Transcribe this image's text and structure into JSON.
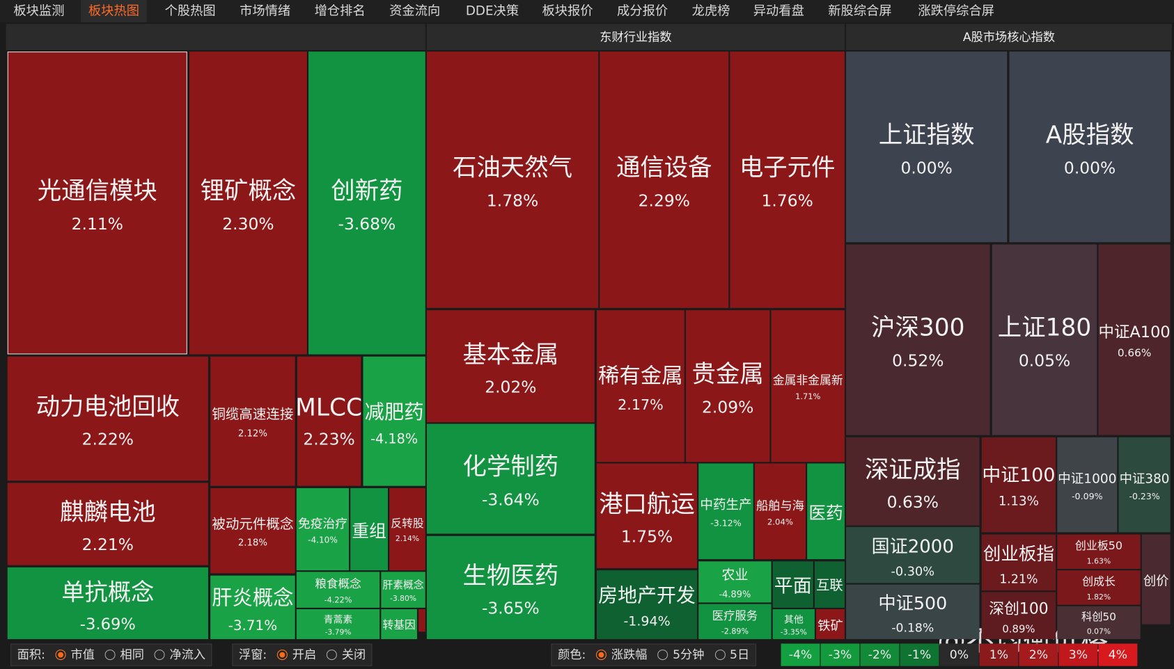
{
  "tabs": [
    "板块监测",
    "板块热图",
    "个股热图",
    "市场情绪",
    "增仓排名",
    "资金流向",
    "DDE决策",
    "板块报价",
    "成分报价",
    "龙虎榜",
    "异动看盘",
    "新股综合屏",
    "涨跌停综合屏"
  ],
  "active_tab": 1,
  "panels": [
    {
      "title": null,
      "tiles": [
        {
          "name": "光通信模块",
          "change": "2.11%"
        },
        {
          "name": "锂矿概念",
          "change": "2.30%"
        },
        {
          "name": "创新药",
          "change": "-3.68%"
        },
        {
          "name": "动力电池回收",
          "change": "2.22%"
        },
        {
          "name": "铜缆高速连接",
          "change": "2.12%"
        },
        {
          "name": "MLCC",
          "change": "2.23%"
        },
        {
          "name": "减肥药",
          "change": "-4.18%"
        },
        {
          "name": "麒麟电池",
          "change": "2.21%"
        },
        {
          "name": "被动元件概念",
          "change": "2.18%"
        },
        {
          "name": "免疫治疗",
          "change": "-4.10%"
        },
        {
          "name": "重组",
          "change": null
        },
        {
          "name": "反转股",
          "change": "2.14%"
        },
        {
          "name": "单抗概念",
          "change": "-3.69%"
        },
        {
          "name": "肝炎概念",
          "change": "-3.71%"
        },
        {
          "name": "粮食概念",
          "change": "-4.22%"
        },
        {
          "name": "肝素概念",
          "change": "-3.80%"
        },
        {
          "name": "青蒿素",
          "change": "-3.79%"
        },
        {
          "name": "转基因",
          "change": null
        },
        {
          "name": null,
          "change": null
        }
      ]
    },
    {
      "title": "东财行业指数",
      "tiles": [
        {
          "name": "石油天然气",
          "change": "1.78%"
        },
        {
          "name": "通信设备",
          "change": "2.29%"
        },
        {
          "name": "电子元件",
          "change": "1.76%"
        },
        {
          "name": "基本金属",
          "change": "2.02%"
        },
        {
          "name": "稀有金属",
          "change": "2.17%"
        },
        {
          "name": "贵金属",
          "change": "2.09%"
        },
        {
          "name": "金属非金属新",
          "change": "1.71%"
        },
        {
          "name": "化学制药",
          "change": "-3.64%"
        },
        {
          "name": "港口航运",
          "change": "1.75%"
        },
        {
          "name": "中药生产",
          "change": "-3.12%"
        },
        {
          "name": "船舶与海",
          "change": "2.04%"
        },
        {
          "name": "医药",
          "change": null
        },
        {
          "name": "生物医药",
          "change": "-3.65%"
        },
        {
          "name": "房地产开发",
          "change": "-1.94%"
        },
        {
          "name": "农业",
          "change": "-4.89%"
        },
        {
          "name": "平面",
          "change": null
        },
        {
          "name": "互联",
          "change": null
        },
        {
          "name": "医疗服务",
          "change": "-2.89%"
        },
        {
          "name": "其他",
          "change": "-3.35%"
        },
        {
          "name": "铁矿",
          "change": null
        }
      ]
    },
    {
      "title": "A股市场核心指数",
      "tiles": [
        {
          "name": "上证指数",
          "change": "0.00%"
        },
        {
          "name": "A股指数",
          "change": "0.00%"
        },
        {
          "name": "沪深300",
          "change": "0.52%"
        },
        {
          "name": "上证180",
          "change": "0.05%"
        },
        {
          "name": "中证A100",
          "change": "0.66%"
        },
        {
          "name": "深证成指",
          "change": "0.63%"
        },
        {
          "name": "中证100",
          "change": "1.13%"
        },
        {
          "name": "中证1000",
          "change": "-0.09%"
        },
        {
          "name": "中证380",
          "change": "-0.23%"
        },
        {
          "name": "国证2000",
          "change": "-0.30%"
        },
        {
          "name": "中证500",
          "change": "-0.18%"
        },
        {
          "name": "创业板指",
          "change": "1.21%"
        },
        {
          "name": "深创100",
          "change": "0.89%"
        },
        {
          "name": "创业板50",
          "change": "1.63%"
        },
        {
          "name": "创成长",
          "change": "1.82%"
        },
        {
          "name": "科创50",
          "change": "0.07%"
        },
        {
          "name": "创价",
          "change": null
        }
      ]
    }
  ],
  "footer": {
    "area_label": "面积:",
    "area_options": [
      "市值",
      "相同",
      "净流入"
    ],
    "float_label": "浮窗:",
    "float_options": [
      "开启",
      "关闭"
    ],
    "color_label": "颜色:",
    "color_options": [
      "涨跌幅",
      "5分钟",
      "5日"
    ],
    "legend": [
      "-4%",
      "-3%",
      "-2%",
      "-1%",
      "0%",
      "1%",
      "2%",
      "3%",
      "4%"
    ]
  },
  "watermark": "@不均衡价格"
}
